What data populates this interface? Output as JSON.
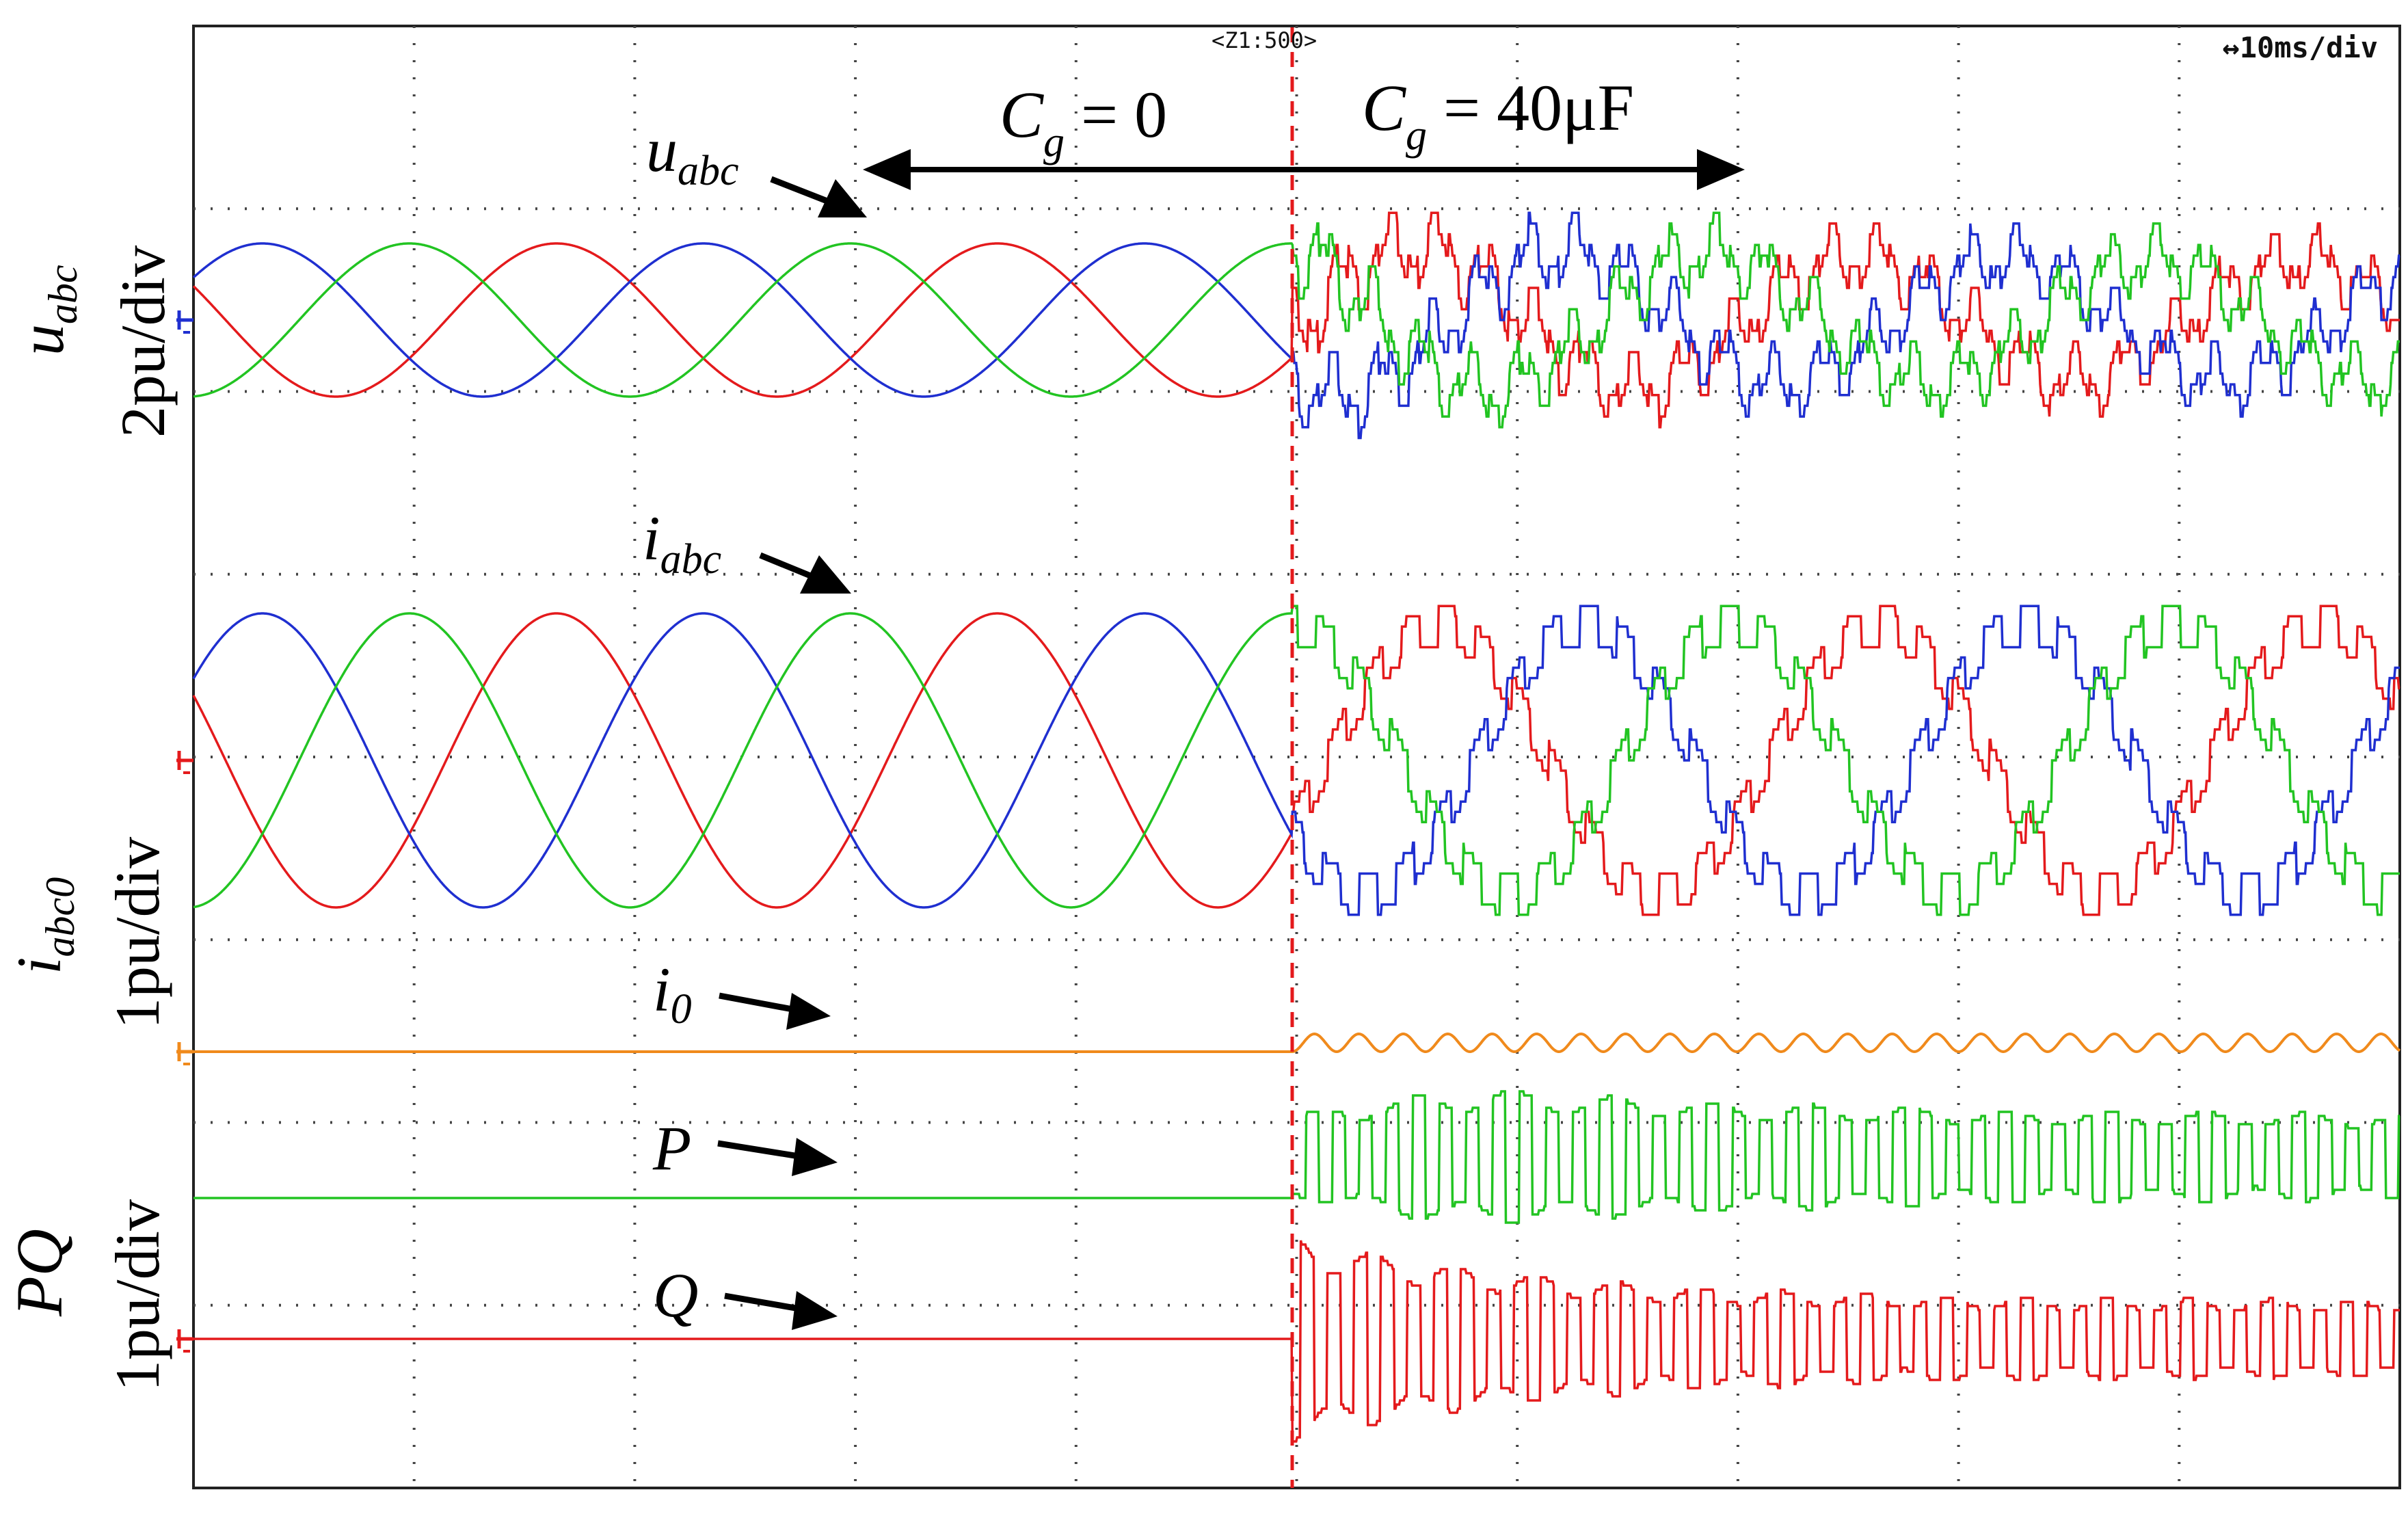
{
  "chart_data": {
    "type": "line",
    "time_scale": "+10ms/div",
    "zoom_label": "<Z1:500>",
    "condition_left": "C_g = 0",
    "condition_right": "C_g = 40μF",
    "panels": [
      {
        "id": "voltage",
        "scale": "2pu/div",
        "y_label": "u_abc",
        "series": [
          {
            "name": "u_abc",
            "label": "u_abc",
            "phase": "a",
            "color": "#e41a1c"
          },
          {
            "name": "u_abc",
            "label": "u_abc",
            "phase": "b",
            "color": "#1f2fd0"
          },
          {
            "name": "u_abc",
            "label": "u_abc",
            "phase": "c",
            "color": "#22c422"
          }
        ]
      },
      {
        "id": "current",
        "scale": "1pu/div",
        "y_label": "i_abc0",
        "series": [
          {
            "name": "i_abc",
            "label": "i_abc",
            "phase": "a",
            "color": "#e41a1c"
          },
          {
            "name": "i_abc",
            "label": "i_abc",
            "phase": "b",
            "color": "#1f2fd0"
          },
          {
            "name": "i_abc",
            "label": "i_abc",
            "phase": "c",
            "color": "#22c422"
          },
          {
            "name": "i_0",
            "label": "i_0",
            "color": "#f08a1c"
          }
        ]
      },
      {
        "id": "power",
        "scale": "1pu/div",
        "y_label": "PQ",
        "series": [
          {
            "name": "P",
            "label": "P",
            "color": "#22c422"
          },
          {
            "name": "Q",
            "label": "Q",
            "color": "#e41a1c"
          }
        ]
      }
    ],
    "grid": true,
    "event": "switching instant (dashed red marker)"
  },
  "labels": {
    "u_main": "u",
    "u_sub": "abc",
    "i_main": "i",
    "i_sub": "abc",
    "i0_main": "i",
    "i0_sub": "0",
    "p": "P",
    "q": "Q",
    "cg_left_main": "C",
    "cg_left_sub": "g",
    "cg_left_rest": " = 0",
    "cg_right_main": "C",
    "cg_right_sub": "g",
    "cg_right_rest": " = 40μF",
    "axis_u_main": "u",
    "axis_u_sub": "abc",
    "axis_u_scale": "2pu/div",
    "axis_i_main": "i",
    "axis_i_sub": "abc0",
    "axis_i_scale": "1pu/div",
    "axis_pq_main": "PQ",
    "axis_pq_scale": "1pu/div",
    "zoom": "<Z1:500>",
    "timescale": "↔10ms/div"
  },
  "colors": {
    "red": "#e41a1c",
    "blue": "#1f2fd0",
    "green": "#22c422",
    "orange": "#f08a1c",
    "grid": "#444444",
    "marker": "#e41a1c"
  }
}
